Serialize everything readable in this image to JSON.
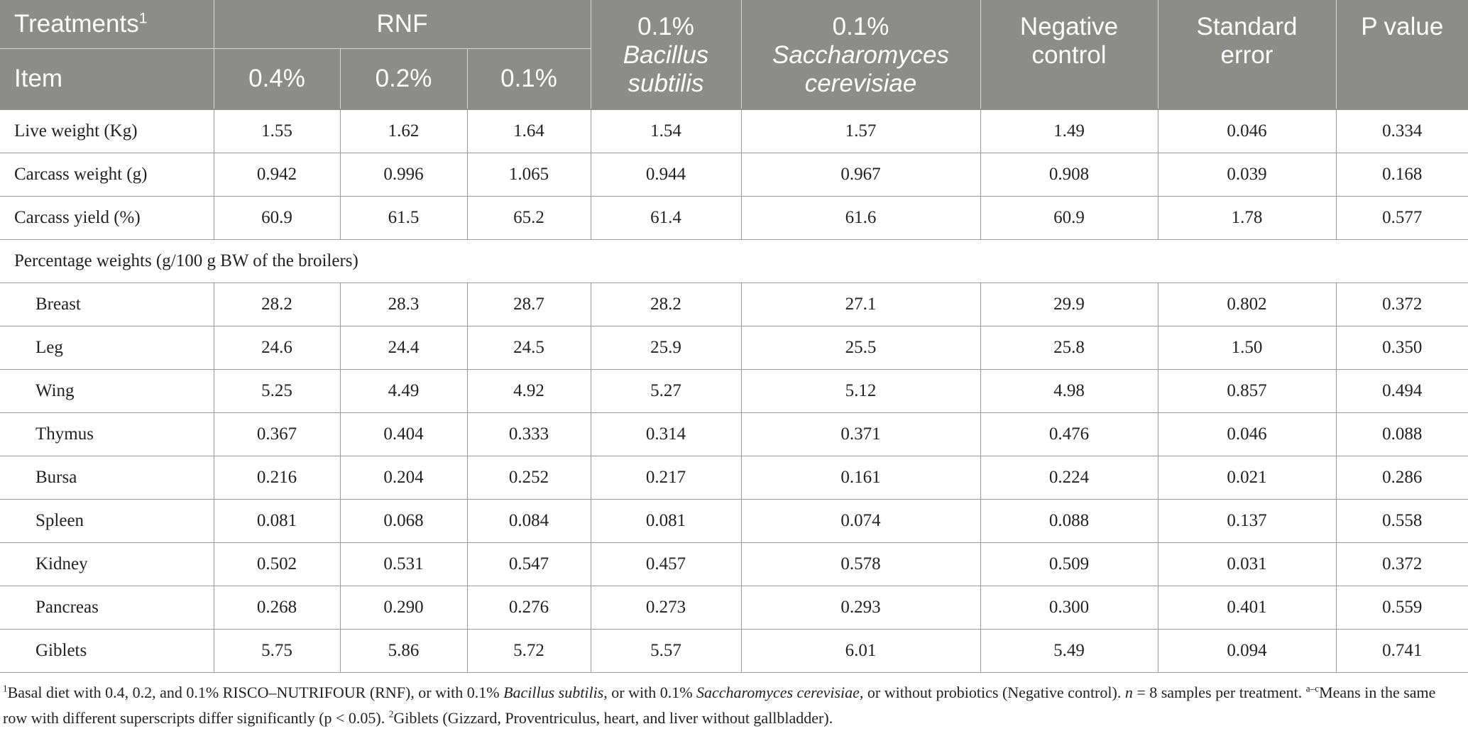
{
  "header": {
    "treatments_label": "Treatments",
    "treatments_sup": "1",
    "item_label": "Item",
    "rnf_label": "RNF",
    "rnf_doses": [
      "0.4%",
      "0.2%",
      "0.1%"
    ],
    "bacillus_dose": "0.1%",
    "bacillus_name_line1": "Bacillus",
    "bacillus_name_line2": "subtilis",
    "sacch_dose": "0.1%",
    "sacch_name_line1": "Saccharomyces",
    "sacch_name_line2": "cerevisiae",
    "negative_line1": "Negative",
    "negative_line2": "control",
    "se_line1": "Standard",
    "se_line2": "error",
    "pvalue_label": "P value"
  },
  "rows_top": [
    {
      "label": "Live weight (Kg)",
      "values": [
        "1.55",
        "1.62",
        "1.64",
        "1.54",
        "1.57",
        "1.49",
        "0.046",
        "0.334"
      ]
    },
    {
      "label": "Carcass weight (g)",
      "values": [
        "0.942",
        "0.996",
        "1.065",
        "0.944",
        "0.967",
        "0.908",
        "0.039",
        "0.168"
      ]
    },
    {
      "label": "Carcass yield (%)",
      "values": [
        "60.9",
        "61.5",
        "65.2",
        "61.4",
        "61.6",
        "60.9",
        "1.78",
        "0.577"
      ]
    }
  ],
  "section_label": "Percentage weights (g/100 g BW of the broilers)",
  "rows_sub": [
    {
      "label": "Breast",
      "values": [
        "28.2",
        "28.3",
        "28.7",
        "28.2",
        "27.1",
        "29.9",
        "0.802",
        "0.372"
      ]
    },
    {
      "label": "Leg",
      "values": [
        "24.6",
        "24.4",
        "24.5",
        "25.9",
        "25.5",
        "25.8",
        "1.50",
        "0.350"
      ]
    },
    {
      "label": "Wing",
      "values": [
        "5.25",
        "4.49",
        "4.92",
        "5.27",
        "5.12",
        "4.98",
        "0.857",
        "0.494"
      ]
    },
    {
      "label": "Thymus",
      "values": [
        "0.367",
        "0.404",
        "0.333",
        "0.314",
        "0.371",
        "0.476",
        "0.046",
        "0.088"
      ]
    },
    {
      "label": "Bursa",
      "values": [
        "0.216",
        "0.204",
        "0.252",
        "0.217",
        "0.161",
        "0.224",
        "0.021",
        "0.286"
      ]
    },
    {
      "label": "Spleen",
      "values": [
        "0.081",
        "0.068",
        "0.084",
        "0.081",
        "0.074",
        "0.088",
        "0.137",
        "0.558"
      ]
    },
    {
      "label": "Kidney",
      "values": [
        "0.502",
        "0.531",
        "0.547",
        "0.457",
        "0.578",
        "0.509",
        "0.031",
        "0.372"
      ]
    },
    {
      "label": "Pancreas",
      "values": [
        "0.268",
        "0.290",
        "0.276",
        "0.273",
        "0.293",
        "0.300",
        "0.401",
        "0.559"
      ]
    },
    {
      "label": "Giblets",
      "values": [
        "5.75",
        "5.86",
        "5.72",
        "5.57",
        "6.01",
        "5.49",
        "0.094",
        "0.741"
      ]
    }
  ],
  "footnote": {
    "sup1": "1",
    "part1": "Basal diet with 0.4, 0.2, and 0.1% RISCO–NUTRIFOUR (RNF), or with 0.1% ",
    "bacillus": "Bacillus subtilis",
    "part2": ", or with 0.1% ",
    "sacch": "Saccharomyces cerevisiae",
    "part3": ", or without probiotics (Negative control). ",
    "n_italic": "n",
    "part4": " = 8 samples per treatment. ",
    "sup_ac": "a–c",
    "part5": "Means in the same row with different superscripts differ significantly (p < 0.05). ",
    "sup2": "2",
    "part6": "Giblets (Gizzard, Proventriculus, heart, and liver without gallbladder)."
  }
}
